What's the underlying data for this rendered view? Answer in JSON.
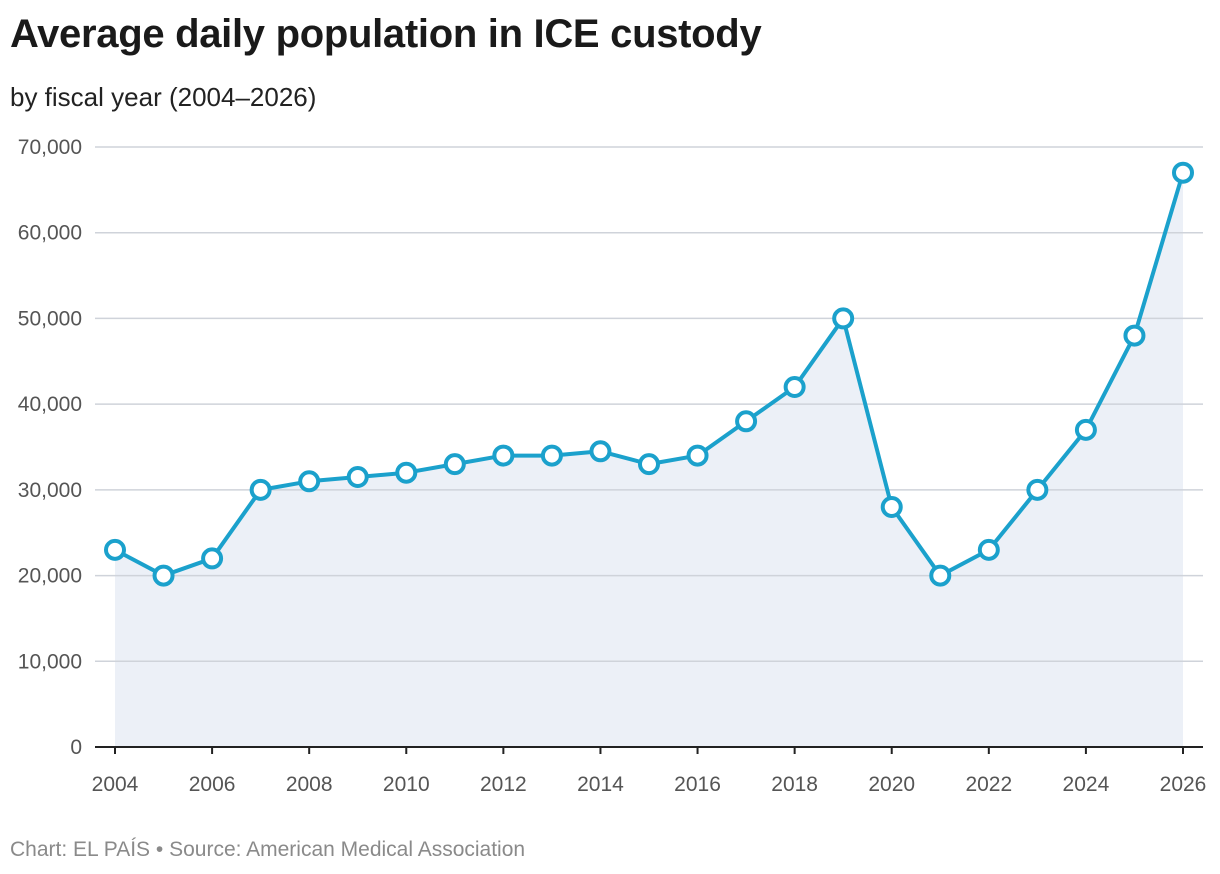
{
  "chart_data": {
    "type": "line",
    "title": "Average daily population in ICE custody",
    "subtitle": "by fiscal year (2004–2026)",
    "xlabel": "",
    "ylabel": "",
    "x": [
      2004,
      2005,
      2006,
      2007,
      2008,
      2009,
      2010,
      2011,
      2012,
      2013,
      2014,
      2015,
      2016,
      2017,
      2018,
      2019,
      2020,
      2021,
      2022,
      2023,
      2024,
      2025,
      2026
    ],
    "series": [
      {
        "values": [
          23000,
          20000,
          22000,
          30000,
          31000,
          31500,
          32000,
          33000,
          34000,
          34000,
          34500,
          33000,
          34000,
          38000,
          42000,
          50000,
          28000,
          20000,
          23000,
          30000,
          37000,
          48000,
          67000
        ]
      }
    ],
    "x_ticks": [
      "2004",
      "2006",
      "2008",
      "2010",
      "2012",
      "2014",
      "2016",
      "2018",
      "2020",
      "2022",
      "2024",
      "2026"
    ],
    "y_ticks": [
      "0",
      "10,000",
      "20,000",
      "30,000",
      "40,000",
      "50,000",
      "60,000",
      "70,000"
    ],
    "xlim": [
      2004,
      2026
    ],
    "ylim": [
      0,
      70000
    ],
    "grid": "horizontal",
    "legend": "none",
    "colors": {
      "line": "#1ba1cc",
      "area": "#ecf0f7",
      "grid": "#cfd3da",
      "axis": "#222222",
      "marker_fill": "#ffffff"
    }
  },
  "footer": "Chart: EL PAÍS • Source: American Medical Association"
}
